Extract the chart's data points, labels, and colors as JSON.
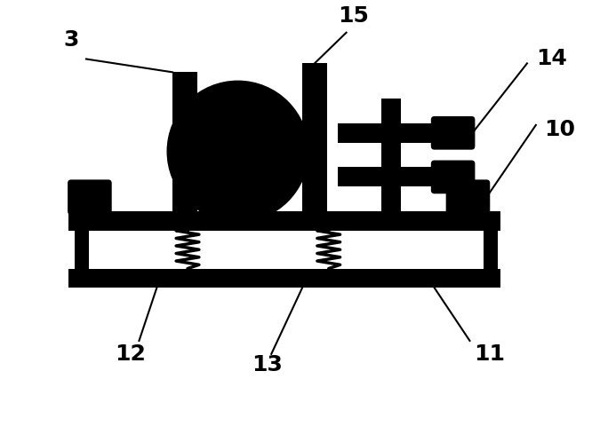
{
  "bg_color": "#ffffff",
  "fg_color": "#000000",
  "fig_width": 6.75,
  "fig_height": 4.98,
  "dpi": 100,
  "label_fontsize": 18,
  "label_fontweight": "bold"
}
